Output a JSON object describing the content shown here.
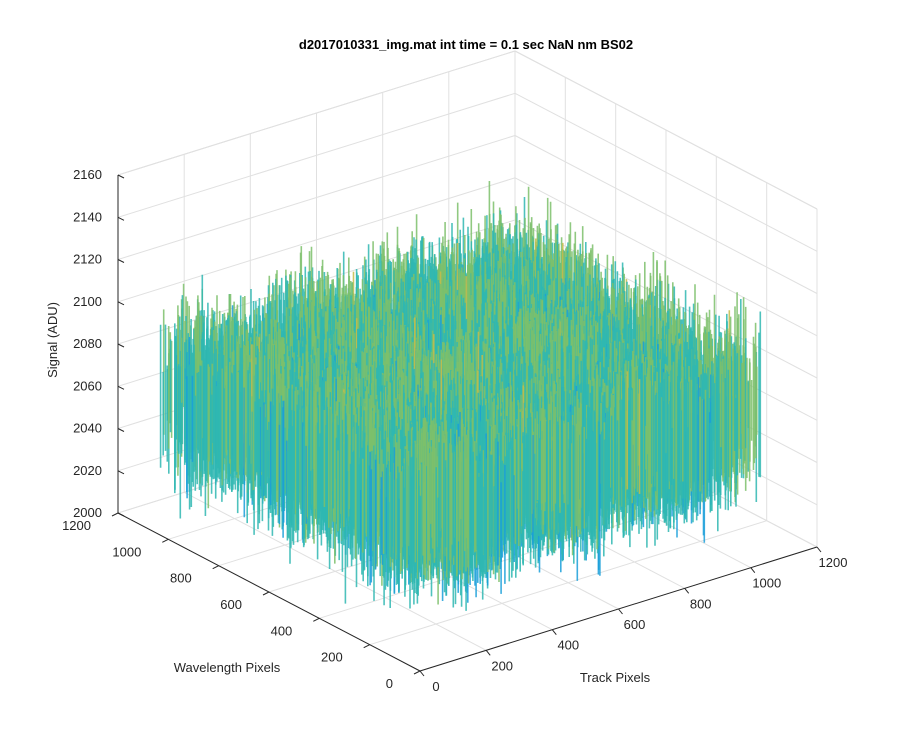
{
  "chart_data": {
    "type": "surface",
    "title": "d2017010331_img.mat int time = 0.1 sec  NaN nm BS02",
    "xlabel": "Track Pixels",
    "ylabel": "Wavelength Pixels",
    "zlabel": "Signal (ADU)",
    "xlim": [
      0,
      1200
    ],
    "ylim": [
      0,
      1200
    ],
    "zlim": [
      2000,
      2160
    ],
    "x_ticks": [
      "0",
      "200",
      "400",
      "600",
      "800",
      "1000",
      "1200"
    ],
    "y_ticks": [
      "0",
      "200",
      "400",
      "600",
      "800",
      "1000",
      "1200"
    ],
    "z_ticks": [
      "2000",
      "2020",
      "2040",
      "2060",
      "2080",
      "2100",
      "2120",
      "2140",
      "2160"
    ],
    "x_data_range": [
      0,
      1024
    ],
    "y_data_range": [
      0,
      1024
    ],
    "z_mean": 2070,
    "z_min_approx": 2005,
    "z_max_approx": 2150,
    "grid": true,
    "colormap": [
      "#0072bd",
      "#1a9fd9",
      "#2fb7b2",
      "#7cbf6b",
      "#c5bb4a",
      "#f2b631"
    ]
  }
}
